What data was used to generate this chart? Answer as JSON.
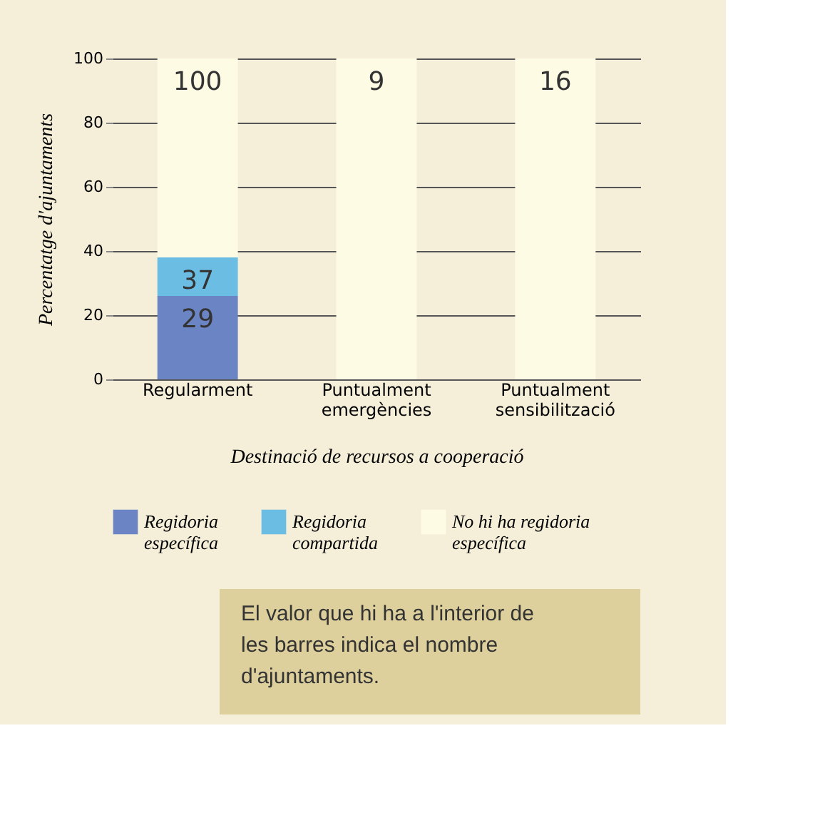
{
  "chart_data": {
    "type": "bar",
    "stacked": true,
    "xlabel": "Destinació de recursos a cooperació",
    "ylabel": "Percentatge d'ajuntaments",
    "categories": [
      "Regularment",
      "Puntualment emergències",
      "Puntualment sensibilització"
    ],
    "series": [
      {
        "name": "Regidoria específica",
        "color": "#6b84c4",
        "values": [
          26,
          0,
          0
        ]
      },
      {
        "name": "Regidoria compartida",
        "color": "#6cbde3",
        "values": [
          12,
          0,
          0
        ]
      },
      {
        "name": "No hi ha regidoria específica",
        "color": "#fdfbe4",
        "values": [
          62,
          100,
          100
        ]
      }
    ],
    "ylim": [
      0,
      100
    ],
    "yticks": [
      0,
      20,
      40,
      60,
      80,
      100
    ],
    "grid": "y",
    "legend": "bottom",
    "annotations": [
      {
        "text": "29",
        "x": "Regularment",
        "y": 26
      },
      {
        "text": "37",
        "x": "Regularment",
        "y": 38
      },
      {
        "text": "100",
        "x": "Regularment",
        "y": 100
      },
      {
        "text": "9",
        "x": "Puntualment emergències",
        "y": 100
      },
      {
        "text": "16",
        "x": "Puntualment sensibilització",
        "y": 100
      },
      "El valor que hi ha a l'interior de les barres indica el nombre d'ajuntaments."
    ]
  }
}
